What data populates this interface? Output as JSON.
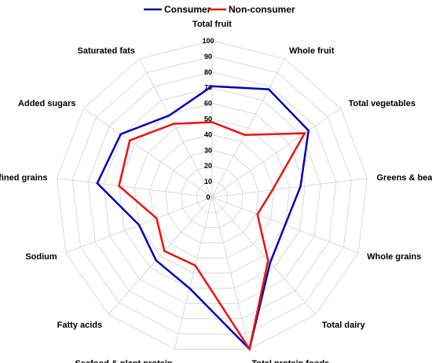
{
  "chart_data": {
    "type": "radar",
    "axes": [
      "Total fruit",
      "Whole fruit",
      "Total vegetables",
      "Greens & beans",
      "Whole grains",
      "Total dairy",
      "Total protein foods",
      "Seafood & plant protein",
      "Fatty acids",
      "Sodium",
      "Refined grains",
      "Added sugars",
      "Saturated fats"
    ],
    "ticks": [
      0,
      10,
      20,
      30,
      40,
      50,
      60,
      70,
      80,
      90,
      100
    ],
    "rmax": 100,
    "series": [
      {
        "name": "Consumer",
        "color": "#0000b4",
        "values": [
          71,
          78,
          75,
          57,
          50,
          56,
          100,
          60,
          54,
          50,
          74,
          71,
          59
        ]
      },
      {
        "name": "Non-consumer",
        "color": "#ee1111",
        "values": [
          48,
          45,
          72,
          39,
          31,
          54,
          100,
          45,
          46,
          38,
          60,
          64,
          53
        ]
      }
    ],
    "legend_position": "top-center",
    "grid": true
  }
}
